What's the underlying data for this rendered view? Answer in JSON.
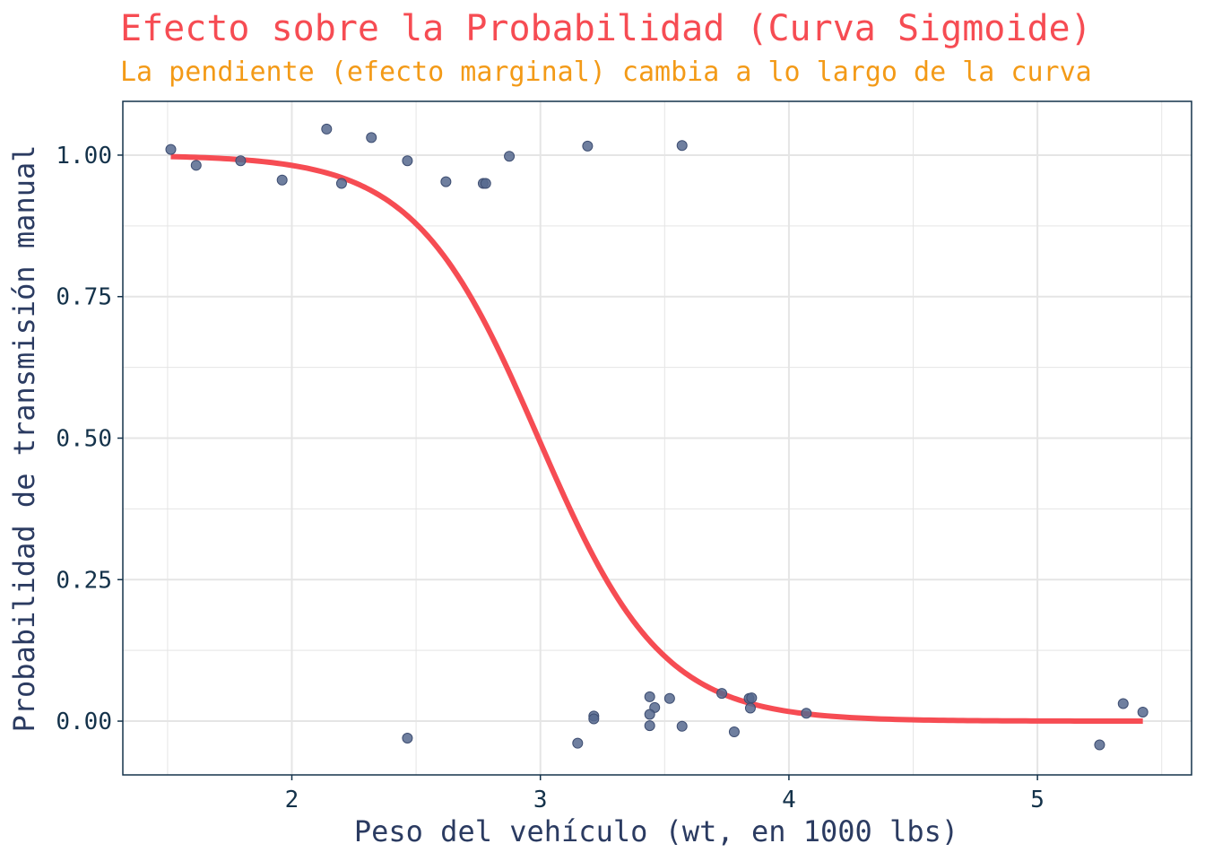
{
  "chart_data": {
    "type": "scatter",
    "title": "Efecto sobre la Probabilidad (Curva Sigmoide)",
    "subtitle": "La pendiente (efecto marginal) cambia a lo largo de la curva",
    "xlabel": "Peso del vehículo (wt, en 1000 lbs)",
    "ylabel": "Probabilidad de transmisión manual",
    "xlim": [
      1.32,
      5.62
    ],
    "ylim": [
      -0.095,
      1.095
    ],
    "x_ticks": [
      2,
      3,
      4,
      5
    ],
    "x_tick_labels": [
      "2",
      "3",
      "4",
      "5"
    ],
    "y_ticks": [
      0,
      0.25,
      0.5,
      0.75,
      1
    ],
    "y_tick_labels": [
      "0.00",
      "0.25",
      "0.50",
      "0.75",
      "1.00"
    ],
    "grid": true,
    "legend": "none",
    "series": [
      {
        "type": "scatter",
        "x": [
          1.513,
          1.615,
          1.794,
          1.961,
          2.14,
          2.2,
          2.32,
          2.465,
          2.62,
          2.77,
          2.78,
          2.875,
          3.19,
          3.57,
          2.465,
          3.15,
          3.215,
          3.215,
          3.44,
          3.46,
          3.44,
          3.44,
          3.52,
          3.57,
          3.73,
          3.78,
          3.84,
          3.845,
          3.85,
          4.07,
          5.25,
          5.345,
          5.424
        ],
        "y": [
          1.01,
          0.982,
          0.99,
          0.956,
          1.046,
          0.95,
          1.031,
          0.99,
          0.953,
          0.95,
          0.95,
          0.998,
          1.016,
          1.017,
          -0.03,
          -0.039,
          0.009,
          0.004,
          0.043,
          0.024,
          0.012,
          -0.008,
          0.04,
          -0.009,
          0.049,
          -0.019,
          0.04,
          0.023,
          0.041,
          0.014,
          -0.042,
          0.031,
          0.016
        ]
      },
      {
        "type": "line",
        "name": "",
        "model": "logistic",
        "intercept": 12.04,
        "slope": -4.024,
        "x_range": [
          1.513,
          5.424
        ],
        "color": "#f64c53"
      }
    ],
    "colors": {
      "points": "#56698e",
      "curve": "#f64c53",
      "grid": "#e5e5e5",
      "panel_border": "#14324a"
    }
  }
}
